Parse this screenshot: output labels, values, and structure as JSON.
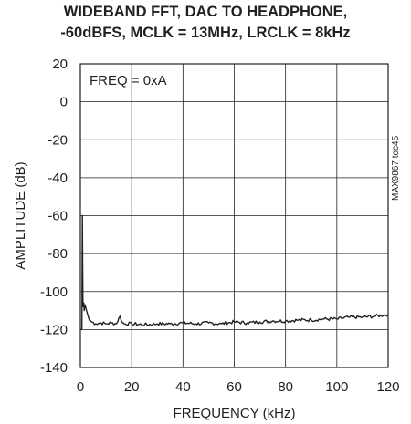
{
  "chart_data": {
    "type": "line",
    "title": "WIDEBAND FFT, DAC TO HEADPHONE,",
    "subtitle": "-60dBFS, MCLK = 13MHz, LRCLK = 8kHz",
    "xlabel": "FREQUENCY (kHz)",
    "ylabel": "AMPLITUDE (dB)",
    "xlim": [
      0,
      120
    ],
    "ylim": [
      -140,
      20
    ],
    "xticks": [
      "0",
      "20",
      "40",
      "60",
      "80",
      "100",
      "120"
    ],
    "yticks": [
      "20",
      "0",
      "-20",
      "-40",
      "-60",
      "-80",
      "-100",
      "-120",
      "-140"
    ],
    "grid": true,
    "annotation": "FREQ = 0xA",
    "side_label": "MAX9867 toc45",
    "series": [
      {
        "color": "#231f20",
        "x": [
          0,
          0.6,
          0.8,
          0.9,
          1.0,
          1.15,
          1.3,
          1.5,
          1.8,
          2.2,
          2.8,
          3.5,
          4.5,
          6,
          8,
          10,
          12,
          14,
          15.5,
          16.2,
          17,
          20,
          25,
          30,
          35,
          40,
          45,
          50,
          55,
          60,
          65,
          70,
          75,
          80,
          85,
          90,
          95,
          100,
          105,
          110,
          115,
          120
        ],
        "y": [
          -120,
          -120,
          -60,
          -85,
          -105,
          -108,
          -106,
          -110,
          -107,
          -109,
          -112,
          -115,
          -116,
          -117,
          -116.5,
          -117,
          -116.5,
          -117,
          -113,
          -116,
          -117,
          -117,
          -117.5,
          -117,
          -117,
          -116.5,
          -117,
          -116.5,
          -117,
          -116,
          -116.5,
          -116,
          -115.5,
          -115.5,
          -115,
          -115,
          -114.5,
          -114.5,
          -113.5,
          -113.5,
          -113,
          -112
        ]
      }
    ]
  }
}
